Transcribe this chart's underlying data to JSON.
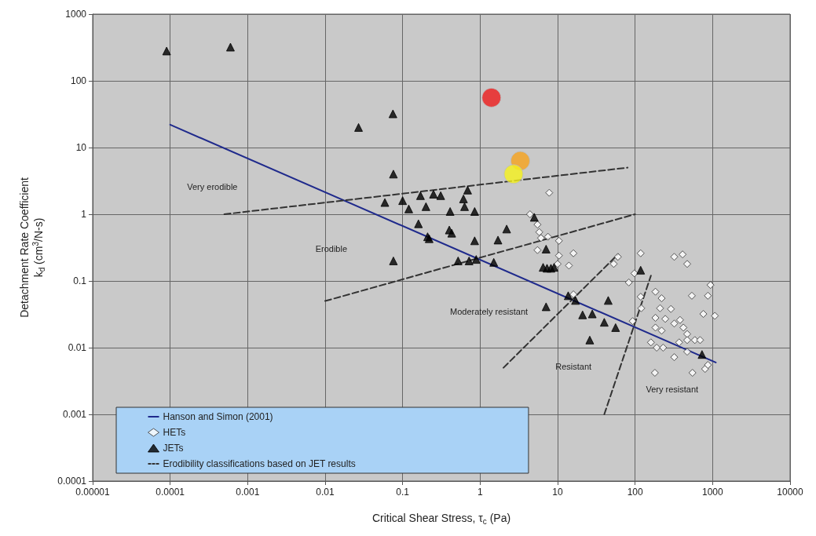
{
  "chart_data": {
    "type": "scatter",
    "xlabel": "Critical Shear Stress, τ$_{c}$ (Pa)",
    "ylabel": "Detachment Rate Coefficient\nk$_{d}$ (cm$^{3}$/N-s)",
    "log": "xy",
    "grid": true,
    "legend": "bottom left",
    "xlim": [
      1e-05,
      10000
    ],
    "xticks": [
      {
        "value": 1e-05,
        "label": "0.00001"
      },
      0.0001,
      0.001,
      0.01,
      0.1,
      1,
      10,
      100,
      1000,
      10000
    ],
    "ylim": [
      0.0001,
      1000
    ],
    "yticks": [
      0.0001,
      0.001,
      0.01,
      0.1,
      1,
      10,
      100,
      1000
    ],
    "series": [
      {
        "name": "Hanson and Simon (2001)",
        "type": "line",
        "color": "#1f2a8c",
        "line_style": "solid",
        "marker": "none",
        "x": [
          0.0001,
          1100
        ],
        "values": [
          22,
          0.006
        ]
      },
      {
        "name": "HETs",
        "color": "#ffffff",
        "marker": "diamond",
        "x": [
          7.8,
          4.4,
          5.5,
          5.8,
          6.1,
          7.5,
          10.4,
          5.5,
          10.4,
          16,
          10,
          14,
          60,
          53,
          118,
          98,
          83,
          16,
          118,
          120,
          93,
          320,
          410,
          470,
          940,
          870,
          540,
          760,
          1070,
          183,
          220,
          210,
          290,
          183,
          245,
          183,
          220,
          320,
          380,
          420,
          470,
          470,
          590,
          690,
          160,
          190,
          230,
          370,
          470,
          320,
          180,
          550,
          800,
          870
        ],
        "values": [
          2.1,
          1.0,
          0.7,
          0.54,
          0.44,
          0.46,
          0.4,
          0.29,
          0.24,
          0.26,
          0.18,
          0.17,
          0.23,
          0.18,
          0.26,
          0.13,
          0.095,
          0.063,
          0.058,
          0.039,
          0.025,
          0.23,
          0.25,
          0.18,
          0.087,
          0.06,
          0.06,
          0.032,
          0.03,
          0.069,
          0.055,
          0.039,
          0.038,
          0.028,
          0.027,
          0.02,
          0.018,
          0.023,
          0.026,
          0.02,
          0.016,
          0.013,
          0.013,
          0.013,
          0.012,
          0.01,
          0.01,
          0.012,
          0.0087,
          0.0072,
          0.0042,
          0.0042,
          0.0048,
          0.0055
        ]
      },
      {
        "name": "JETs",
        "color": "#000000",
        "marker": "triangle",
        "x": [
          9e-05,
          0.0006,
          0.027,
          0.076,
          0.075,
          0.059,
          0.1,
          0.12,
          0.17,
          0.25,
          0.31,
          0.2,
          0.16,
          0.41,
          0.69,
          0.61,
          0.63,
          0.85,
          0.4,
          0.43,
          0.21,
          0.22,
          0.85,
          1.7,
          2.2,
          0.076,
          0.52,
          0.72,
          0.89,
          1.5,
          5.0,
          7.1,
          6.5,
          7.3,
          8.2,
          9.0,
          7.1,
          13.7,
          17,
          21,
          28,
          45,
          40,
          56,
          26,
          118,
          730
        ],
        "values": [
          280,
          320,
          20,
          4.0,
          32,
          1.5,
          1.6,
          1.2,
          1.9,
          2.0,
          1.9,
          1.3,
          0.72,
          1.1,
          2.3,
          1.7,
          1.3,
          1.1,
          0.58,
          0.52,
          0.46,
          0.43,
          0.4,
          0.41,
          0.6,
          0.2,
          0.2,
          0.2,
          0.21,
          0.19,
          0.9,
          0.3,
          0.16,
          0.155,
          0.155,
          0.16,
          0.041,
          0.06,
          0.051,
          0.031,
          0.032,
          0.051,
          0.024,
          0.02,
          0.013,
          0.145,
          0.0079
        ]
      },
      {
        "name": "Erodibility classifications based on JET results",
        "type": "line",
        "color": "#333333",
        "line_style": "dashed",
        "marker": "none",
        "x": [
          0.0005,
          80,
          null,
          0.01,
          100,
          null,
          2,
          60,
          null,
          40,
          160
        ],
        "values": [
          1,
          5,
          null,
          0.05,
          1,
          null,
          0.005,
          0.25,
          null,
          0.001,
          0.12
        ]
      },
      {
        "color": "#ee1c1c",
        "marker": "circle",
        "x": [
          1.4
        ],
        "values": [
          56
        ]
      },
      {
        "color": "#f7a21b",
        "marker": "circle",
        "x": [
          3.3
        ],
        "values": [
          6.3
        ]
      },
      {
        "color": "#f6f21c",
        "marker": "circle",
        "x": [
          2.7
        ],
        "values": [
          4.0
        ]
      }
    ],
    "annotations": [
      "Very erodible",
      "Erodible",
      "Moderately resistant",
      "Resistant",
      "Very resistant"
    ]
  }
}
